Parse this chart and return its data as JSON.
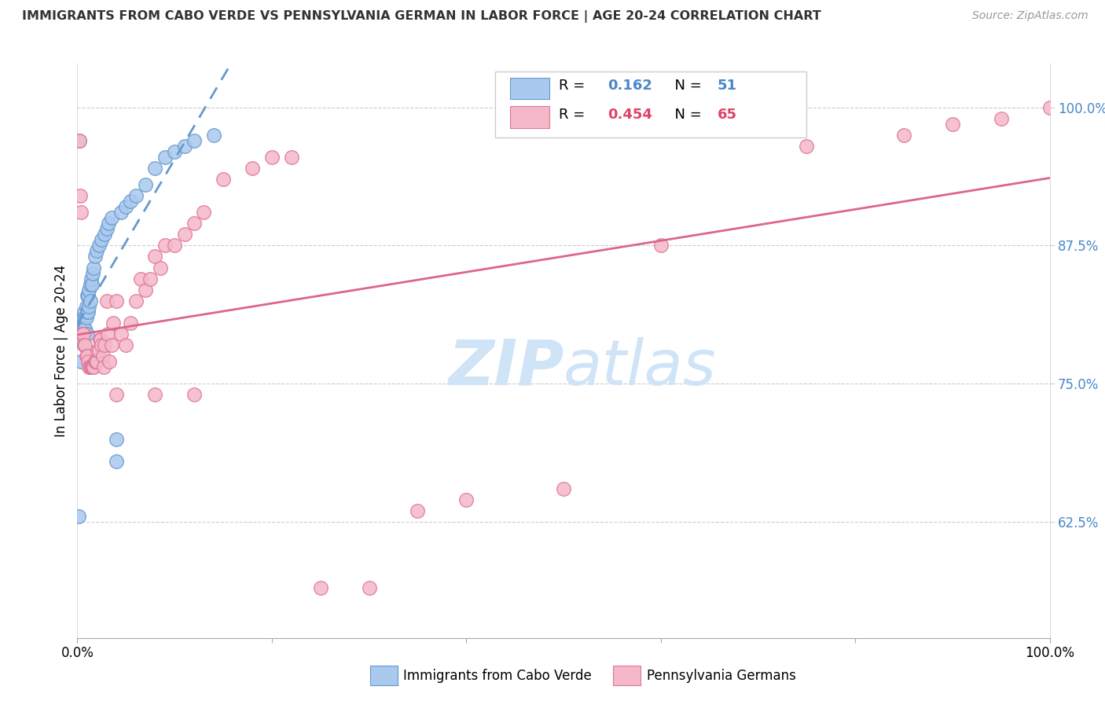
{
  "title": "IMMIGRANTS FROM CABO VERDE VS PENNSYLVANIA GERMAN IN LABOR FORCE | AGE 20-24 CORRELATION CHART",
  "source": "Source: ZipAtlas.com",
  "ylabel": "In Labor Force | Age 20-24",
  "ylabel_ticks": [
    "62.5%",
    "75.0%",
    "87.5%",
    "100.0%"
  ],
  "ylabel_tick_values": [
    0.625,
    0.75,
    0.875,
    1.0
  ],
  "xlim": [
    0.0,
    1.0
  ],
  "ylim": [
    0.52,
    1.04
  ],
  "cabo_verde_R": "0.162",
  "cabo_verde_N": "51",
  "penn_german_R": "0.454",
  "penn_german_N": "65",
  "cabo_verde_color": "#aac9ee",
  "cabo_verde_edge": "#6699cc",
  "penn_german_color": "#f5b8c8",
  "penn_german_edge": "#dd7799",
  "trendline_blue": "#6699cc",
  "trendline_pink": "#dd6688",
  "watermark_color": "#d0e4f7",
  "cabo_verde_x": [
    0.001,
    0.002,
    0.003,
    0.004,
    0.004,
    0.005,
    0.005,
    0.006,
    0.006,
    0.007,
    0.007,
    0.007,
    0.008,
    0.008,
    0.008,
    0.009,
    0.009,
    0.01,
    0.01,
    0.01,
    0.011,
    0.011,
    0.012,
    0.012,
    0.013,
    0.013,
    0.014,
    0.015,
    0.016,
    0.017,
    0.018,
    0.02,
    0.022,
    0.025,
    0.028,
    0.03,
    0.032,
    0.035,
    0.04,
    0.04,
    0.045,
    0.05,
    0.055,
    0.06,
    0.07,
    0.08,
    0.09,
    0.1,
    0.11,
    0.12,
    0.14
  ],
  "cabo_verde_y": [
    0.63,
    0.97,
    0.79,
    0.79,
    0.77,
    0.81,
    0.79,
    0.81,
    0.8,
    0.815,
    0.8,
    0.785,
    0.81,
    0.8,
    0.795,
    0.82,
    0.81,
    0.83,
    0.815,
    0.795,
    0.83,
    0.815,
    0.835,
    0.82,
    0.84,
    0.825,
    0.845,
    0.84,
    0.85,
    0.855,
    0.865,
    0.87,
    0.875,
    0.88,
    0.885,
    0.89,
    0.895,
    0.9,
    0.7,
    0.68,
    0.905,
    0.91,
    0.915,
    0.92,
    0.93,
    0.945,
    0.955,
    0.96,
    0.965,
    0.97,
    0.975
  ],
  "penn_german_x": [
    0.002,
    0.003,
    0.004,
    0.005,
    0.006,
    0.007,
    0.008,
    0.009,
    0.01,
    0.011,
    0.012,
    0.013,
    0.014,
    0.015,
    0.016,
    0.017,
    0.018,
    0.019,
    0.02,
    0.021,
    0.022,
    0.023,
    0.024,
    0.025,
    0.026,
    0.027,
    0.028,
    0.03,
    0.031,
    0.033,
    0.035,
    0.037,
    0.04,
    0.045,
    0.05,
    0.055,
    0.06,
    0.065,
    0.07,
    0.075,
    0.08,
    0.085,
    0.09,
    0.1,
    0.11,
    0.12,
    0.13,
    0.15,
    0.18,
    0.2,
    0.22,
    0.25,
    0.3,
    0.35,
    0.4,
    0.5,
    0.6,
    0.75,
    0.85,
    0.9,
    0.95,
    1.0,
    0.04,
    0.08,
    0.12
  ],
  "penn_german_y": [
    0.97,
    0.92,
    0.905,
    0.795,
    0.795,
    0.785,
    0.785,
    0.775,
    0.775,
    0.77,
    0.765,
    0.765,
    0.765,
    0.765,
    0.765,
    0.765,
    0.77,
    0.77,
    0.77,
    0.78,
    0.78,
    0.79,
    0.79,
    0.785,
    0.775,
    0.765,
    0.785,
    0.825,
    0.795,
    0.77,
    0.785,
    0.805,
    0.825,
    0.795,
    0.785,
    0.805,
    0.825,
    0.845,
    0.835,
    0.845,
    0.865,
    0.855,
    0.875,
    0.875,
    0.885,
    0.895,
    0.905,
    0.935,
    0.945,
    0.955,
    0.955,
    0.565,
    0.565,
    0.635,
    0.645,
    0.655,
    0.875,
    0.965,
    0.975,
    0.985,
    0.99,
    1.0,
    0.74,
    0.74,
    0.74
  ]
}
